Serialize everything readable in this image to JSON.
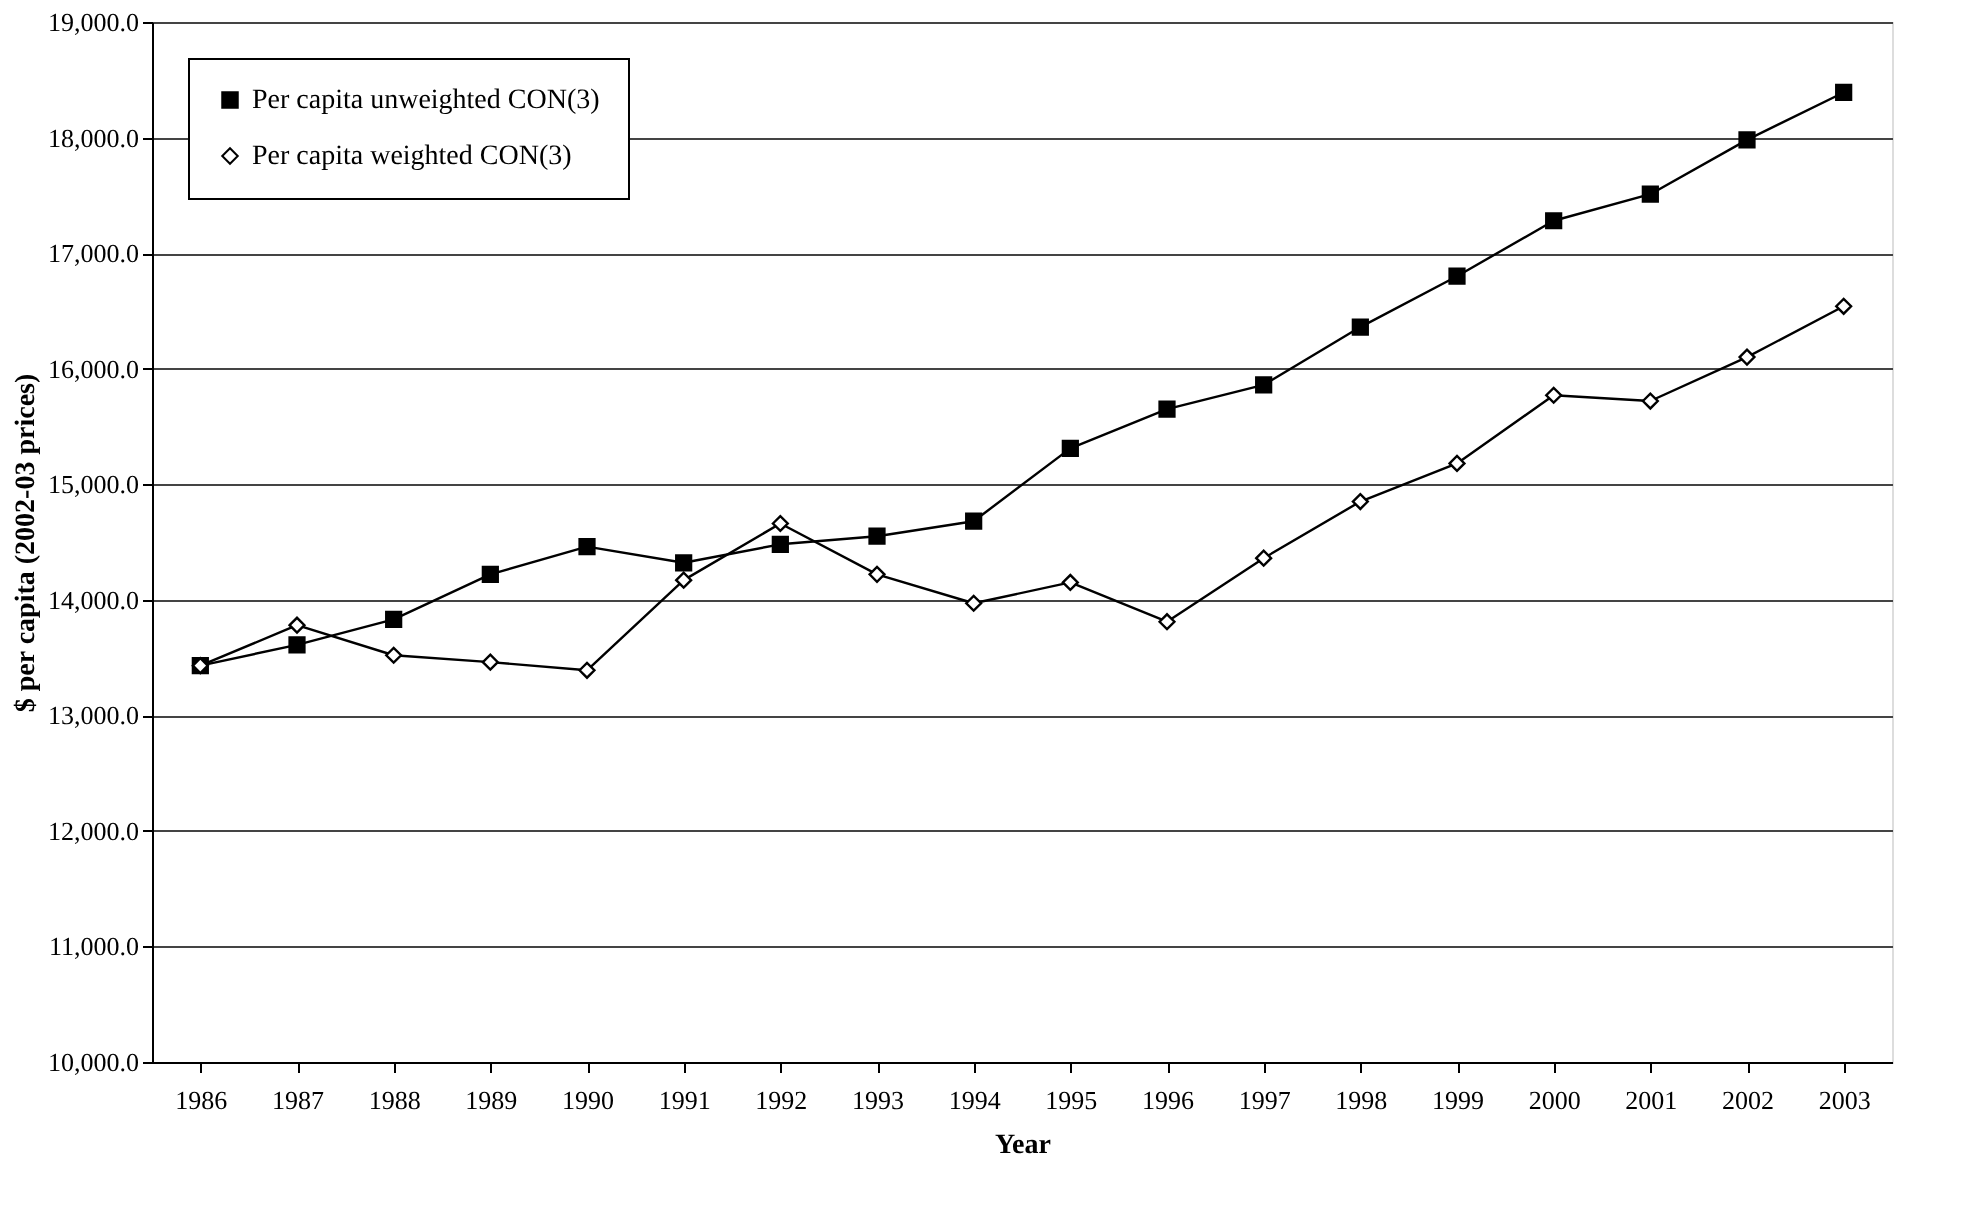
{
  "chart_data": {
    "type": "line",
    "xlabel": "Year",
    "ylabel": "$ per capita (2002-03 prices)",
    "categories": [
      "1986",
      "1987",
      "1988",
      "1989",
      "1990",
      "1991",
      "1992",
      "1993",
      "1994",
      "1995",
      "1996",
      "1997",
      "1998",
      "1999",
      "2000",
      "2001",
      "2002",
      "2003"
    ],
    "series": [
      {
        "name": "Per capita unweighted CON(3)",
        "color": "#000000",
        "marker": "square",
        "values": [
          13430,
          13610,
          13830,
          14220,
          14460,
          14320,
          14480,
          14550,
          14680,
          15310,
          15650,
          15860,
          16360,
          16800,
          17280,
          17510,
          17980,
          18390
        ]
      },
      {
        "name": "Per capita weighted CON(3)",
        "color": "#000000",
        "marker": "diamond",
        "values": [
          13430,
          13780,
          13520,
          13460,
          13390,
          14170,
          14660,
          14220,
          13970,
          14150,
          13810,
          14360,
          14850,
          15180,
          15770,
          15720,
          16100,
          16540
        ]
      }
    ],
    "ylim": [
      10000,
      19000
    ],
    "yticks": [
      {
        "value": 10000,
        "label": "10,000.0"
      },
      {
        "value": 11000,
        "label": "11,000.0"
      },
      {
        "value": 12000,
        "label": "12,000.0"
      },
      {
        "value": 13000,
        "label": "13,000.0"
      },
      {
        "value": 14000,
        "label": "14,000.0"
      },
      {
        "value": 15000,
        "label": "15,000.0"
      },
      {
        "value": 16000,
        "label": "16,000.0"
      },
      {
        "value": 17000,
        "label": "17,000.0"
      },
      {
        "value": 18000,
        "label": "18,000.0"
      },
      {
        "value": 19000,
        "label": "19,000.0"
      }
    ],
    "grid": "y",
    "legend": "top left",
    "line_style": "solid"
  }
}
